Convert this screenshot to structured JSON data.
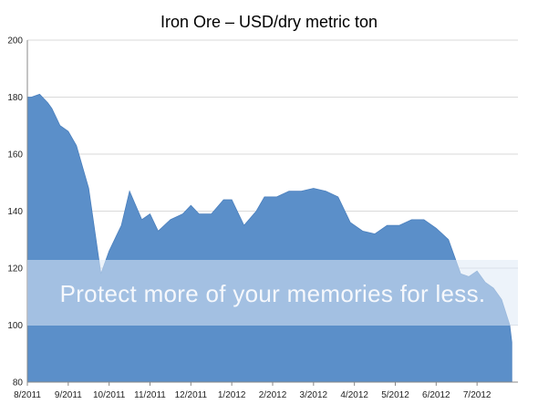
{
  "chart_data": {
    "type": "area",
    "title": "Iron Ore – USD/dry metric ton",
    "xlabel": "",
    "ylabel": "",
    "ylim": [
      80,
      200
    ],
    "y_ticks": [
      80,
      100,
      120,
      140,
      160,
      180,
      200
    ],
    "x_tick_labels": [
      "8/2011",
      "9/2011",
      "10/2011",
      "11/2011",
      "12/2011",
      "1/2012",
      "2/2012",
      "3/2012",
      "4/2012",
      "5/2012",
      "6/2012",
      "7/2012"
    ],
    "grid": "horizontal",
    "legend": "none",
    "fill_color": "#5b8fc9",
    "series": [
      {
        "x": [
          0,
          0.1,
          0.3,
          0.5,
          0.6,
          0.8,
          1.0,
          1.2,
          1.5,
          1.8,
          2.0,
          2.3,
          2.5,
          2.8,
          3.0,
          3.2,
          3.5,
          3.8,
          4.0,
          4.2,
          4.5,
          4.8,
          5.0,
          5.3,
          5.6,
          5.8,
          6.1,
          6.4,
          6.7,
          7.0,
          7.3,
          7.6,
          7.9,
          8.2,
          8.5,
          8.8,
          9.1,
          9.4,
          9.7,
          10.0,
          10.3,
          10.6,
          10.8,
          11.0,
          11.2,
          11.4,
          11.6,
          11.8,
          11.85
        ],
        "y": [
          180,
          180,
          181,
          178,
          176,
          170,
          168,
          163,
          148,
          118,
          126,
          135,
          147,
          137,
          139,
          133,
          137,
          139,
          142,
          139,
          139,
          144,
          144,
          135,
          140,
          145,
          145,
          147,
          147,
          148,
          147,
          145,
          136,
          133,
          132,
          135,
          135,
          137,
          137,
          134,
          130,
          118,
          117,
          119,
          115,
          113,
          109,
          100,
          94
        ]
      }
    ]
  },
  "watermark": {
    "text": "Protect more of your memories for less."
  }
}
